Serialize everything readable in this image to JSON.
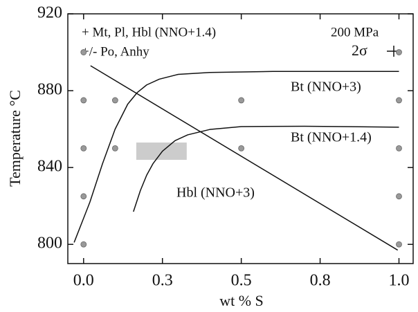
{
  "chart_data": {
    "type": "line",
    "xlabel": "wt % S",
    "ylabel": "Temperature °C",
    "annotations": [
      "+ Mt, Pl, Hbl (NNO+1.4)",
      "+/- Po, Anhy",
      "200 MPa",
      "2σ"
    ],
    "xlim": [
      -0.05,
      1.045
    ],
    "ylim": [
      790,
      920
    ],
    "xticks": [
      {
        "value": 0,
        "label": "0.0"
      },
      {
        "value": 0.25,
        "label": "0.3"
      },
      {
        "value": 0.5,
        "label": "0.5"
      },
      {
        "value": 0.75,
        "label": "0.8"
      },
      {
        "value": 1,
        "label": "1.0"
      }
    ],
    "yticks": [
      800,
      840,
      880,
      920
    ],
    "series": [
      {
        "name": "Bt (NNO+3)",
        "color": "#111111",
        "x": [
          -0.03,
          0.02,
          0.06,
          0.1,
          0.14,
          0.17,
          0.2,
          0.24,
          0.3,
          0.4,
          0.6,
          1.0
        ],
        "values": [
          801,
          822,
          842,
          860,
          873,
          879,
          883,
          886,
          888.5,
          889.5,
          890,
          890
        ]
      },
      {
        "name": "Bt (NNO+1.4)",
        "color": "#111111",
        "x": [
          0.158,
          0.18,
          0.2,
          0.22,
          0.25,
          0.29,
          0.33,
          0.4,
          0.5,
          0.7,
          1.0
        ],
        "values": [
          817,
          828,
          836,
          842,
          848.5,
          854,
          857,
          859.8,
          861.3,
          861.5,
          861
        ]
      },
      {
        "name": "Hbl (NNO+3)",
        "color": "#111111",
        "x": [
          0.022,
          0.996
        ],
        "values": [
          893,
          797
        ]
      }
    ],
    "points": {
      "color": "#999999",
      "x": [
        0,
        0,
        0,
        0,
        0,
        0.1,
        0.1,
        0.5,
        0.5,
        1,
        1,
        1,
        1,
        1
      ],
      "values": [
        900,
        875,
        850,
        825,
        800,
        875,
        850,
        875,
        850,
        900,
        875,
        850,
        825,
        800
      ]
    },
    "box": {
      "color": "#cccccc",
      "x": [
        0.167,
        0.327
      ],
      "values": [
        844,
        853
      ]
    }
  }
}
